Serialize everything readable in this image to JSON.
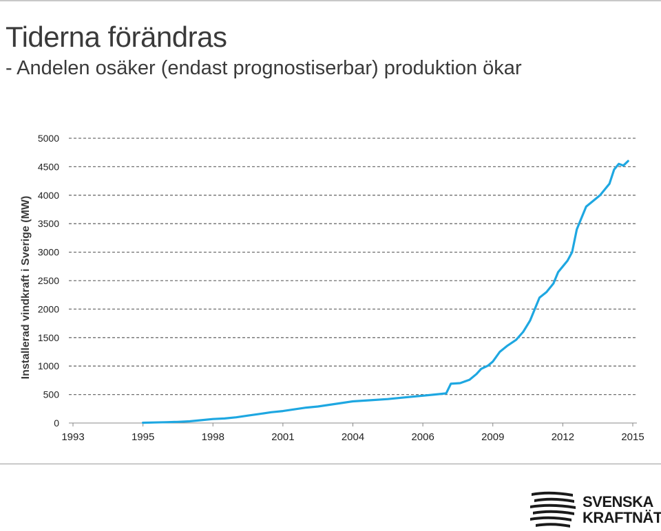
{
  "header": {
    "title": "Tiderna förändras",
    "subtitle": "- Andelen osäker (endast prognostiserbar) produktion ökar"
  },
  "logo": {
    "line1": "SVENSKA",
    "line2": "KRAFTNÄT"
  },
  "colors": {
    "series": "#1ea7e1",
    "grid": "#6e6e6e",
    "axis_text": "#222222",
    "title_text": "#3a3a3a"
  },
  "chart_data": {
    "type": "line",
    "title": "",
    "xlabel": "",
    "ylabel": "Installerad vindkraft i Sverige (MW)",
    "x_tick_labels": [
      "1993",
      "1995",
      "1998",
      "2001",
      "2004",
      "2006",
      "2009",
      "2012",
      "2015"
    ],
    "y_tick_labels": [
      "0",
      "500",
      "1000",
      "1500",
      "2000",
      "2500",
      "3000",
      "3500",
      "4000",
      "4500",
      "5000"
    ],
    "ylim": [
      0,
      5000
    ],
    "grid": "horizontal dashed",
    "legend": "none",
    "series": [
      {
        "x": [
          1995.0,
          1995.5,
          1996.0,
          1996.5,
          1997.0,
          1997.5,
          1998.0,
          1998.5,
          1999.0,
          1999.5,
          2000.0,
          2000.5,
          2001.0,
          2001.5,
          2002.0,
          2002.5,
          2003.0,
          2003.5,
          2004.0,
          2004.5,
          2005.0,
          2005.5,
          2006.0,
          2006.5,
          2007.0,
          2007.2,
          2007.6,
          2008.0,
          2008.3,
          2008.5,
          2008.8,
          2009.0,
          2009.3,
          2009.6,
          2010.0,
          2010.3,
          2010.6,
          2010.8,
          2011.0,
          2011.3,
          2011.6,
          2011.8,
          2012.0,
          2012.2,
          2012.4,
          2012.6,
          2012.8,
          2013.0,
          2013.3,
          2013.6,
          2013.8,
          2014.0,
          2014.2,
          2014.4,
          2014.6,
          2014.8
        ],
        "y": [
          5,
          10,
          15,
          20,
          30,
          50,
          70,
          80,
          100,
          130,
          160,
          190,
          210,
          240,
          270,
          290,
          320,
          350,
          380,
          400,
          420,
          450,
          480,
          500,
          520,
          690,
          700,
          760,
          860,
          950,
          1010,
          1080,
          1250,
          1350,
          1460,
          1600,
          1800,
          2000,
          2200,
          2300,
          2450,
          2650,
          2750,
          2850,
          3000,
          3400,
          3600,
          3800,
          3900,
          4000,
          4100,
          4200,
          4450,
          4550,
          4520,
          4600
        ]
      }
    ]
  }
}
